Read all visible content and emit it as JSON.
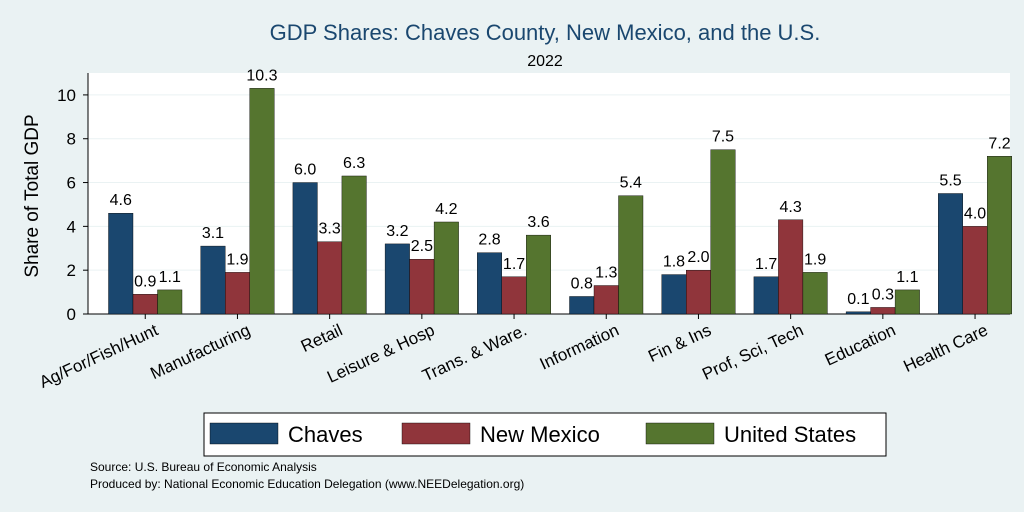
{
  "chart_data": {
    "type": "bar",
    "title": "GDP Shares: Chaves County, New Mexico, and the U.S.",
    "subtitle": "2022",
    "xlabel": "",
    "ylabel": "Share of Total GDP",
    "ylim": [
      0,
      11
    ],
    "yticks": [
      0,
      2,
      4,
      6,
      8,
      10
    ],
    "grid": true,
    "legend_position": "bottom",
    "categories": [
      "Ag/For/Fish/Hunt",
      "Manufacturing",
      "Retail",
      "Leisure & Hosp",
      "Trans. & Ware.",
      "Information",
      "Fin & Ins",
      "Prof, Sci, Tech",
      "Education",
      "Health Care"
    ],
    "series": [
      {
        "name": "Chaves",
        "color": "#1a476f",
        "values": [
          4.6,
          3.1,
          6.0,
          3.2,
          2.8,
          0.8,
          1.8,
          1.7,
          0.1,
          5.5
        ]
      },
      {
        "name": "New Mexico",
        "color": "#90353b",
        "values": [
          0.9,
          1.9,
          3.3,
          2.5,
          1.7,
          1.3,
          2.0,
          4.3,
          0.3,
          4.0
        ]
      },
      {
        "name": "United States",
        "color": "#55752f",
        "values": [
          1.1,
          10.3,
          6.3,
          4.2,
          3.6,
          5.4,
          7.5,
          1.9,
          1.1,
          7.2
        ]
      }
    ],
    "notes": [
      "Source: U.S. Bureau of Economic Analysis",
      "Produced by: National Economic Education Delegation (www.NEEDelegation.org)"
    ]
  }
}
